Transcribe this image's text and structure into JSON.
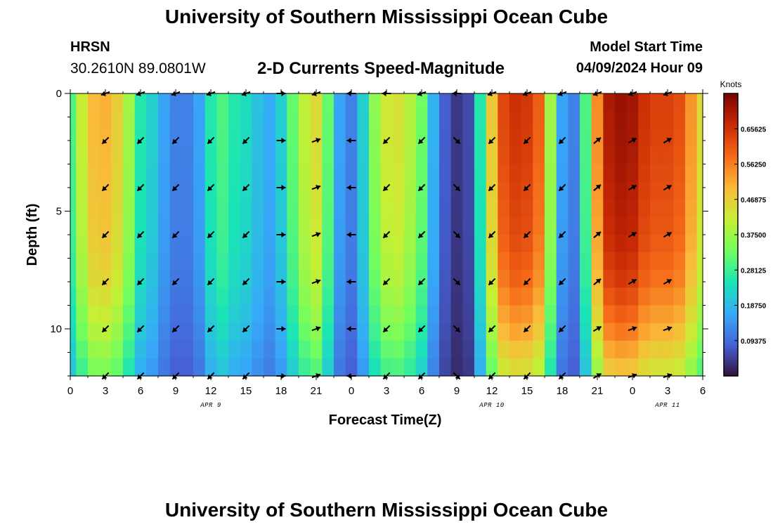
{
  "header": {
    "title": "University of Southern Mississippi Ocean Cube",
    "station": "HRSN",
    "coordinates": "30.2610N  89.0801W",
    "subtitle": "2-D Currents Speed-Magnitude",
    "model_start_label": "Model Start Time",
    "model_start_value": "04/09/2024 Hour 09"
  },
  "footer": {
    "title": "University of Southern Mississippi Ocean Cube"
  },
  "chart_data": {
    "type": "heatmap",
    "title": "2-D Currents Speed-Magnitude",
    "xlabel": "Forecast Time(Z)",
    "ylabel": "Depth (ft)",
    "x_tick_labels": [
      "0",
      "3",
      "6",
      "9",
      "12",
      "15",
      "18",
      "21",
      "0",
      "3",
      "6",
      "9",
      "12",
      "15",
      "18",
      "21",
      "0",
      "3",
      "6"
    ],
    "x_range_hours": [
      0,
      54
    ],
    "date_labels": [
      {
        "text": "APR 9",
        "hour": 12
      },
      {
        "text": "APR 10",
        "hour": 36
      },
      {
        "text": "APR 11",
        "hour": 51
      }
    ],
    "y_ticks": [
      0,
      5,
      10
    ],
    "y_range_ft": [
      0,
      12
    ],
    "y_inverted": true,
    "colorbar": {
      "title": "Knots",
      "range": [
        0,
        0.75
      ],
      "ticks": [
        "0.09375",
        "0.18750",
        "0.28125",
        "0.37500",
        "0.46875",
        "0.56250",
        "0.65625"
      ],
      "colors": [
        "#30123b",
        "#4662d7",
        "#36aaf9",
        "#1ae4b6",
        "#72fe5e",
        "#c7ef34",
        "#faba39",
        "#f66b19",
        "#ca2a04",
        "#7a0403"
      ]
    },
    "speed_profile": {
      "hours": [
        0,
        1,
        2,
        3,
        4,
        5,
        6,
        7,
        8,
        9,
        10,
        11,
        12,
        13,
        14,
        15,
        16,
        17,
        18,
        19,
        20,
        21,
        22,
        23,
        24,
        25,
        26,
        27,
        28,
        29,
        30,
        31,
        32,
        33,
        34,
        35,
        36,
        37,
        38,
        39,
        40,
        41,
        42,
        43,
        44,
        45,
        46,
        47,
        48,
        49,
        50,
        51,
        52,
        53,
        54
      ],
      "surface_knots": [
        0.3,
        0.42,
        0.5,
        0.51,
        0.47,
        0.38,
        0.26,
        0.22,
        0.16,
        0.12,
        0.12,
        0.16,
        0.26,
        0.3,
        0.26,
        0.24,
        0.2,
        0.17,
        0.22,
        0.32,
        0.41,
        0.45,
        0.32,
        0.16,
        0.12,
        0.22,
        0.36,
        0.43,
        0.44,
        0.4,
        0.33,
        0.18,
        0.08,
        0.04,
        0.06,
        0.26,
        0.48,
        0.63,
        0.66,
        0.65,
        0.6,
        0.38,
        0.16,
        0.12,
        0.3,
        0.55,
        0.7,
        0.72,
        0.71,
        0.66,
        0.64,
        0.64,
        0.62,
        0.54,
        0.45
      ],
      "depth_ft": [
        0,
        2,
        4,
        6,
        8,
        10,
        12
      ],
      "depth_factor": [
        1.0,
        0.99,
        0.97,
        0.95,
        0.9,
        0.8,
        0.66
      ]
    },
    "vectors": {
      "hours": [
        3,
        6,
        9,
        12,
        15,
        18,
        21,
        24,
        27,
        30,
        33,
        36,
        39,
        42,
        45,
        48,
        51
      ],
      "depths_ft": [
        0,
        2,
        4,
        6,
        8,
        10,
        12
      ],
      "direction_deg": [
        225,
        225,
        225,
        225,
        225,
        90,
        70,
        270,
        225,
        225,
        135,
        225,
        225,
        225,
        50,
        60,
        60
      ],
      "deep_direction_deg": [
        225,
        225,
        225,
        225,
        225,
        90,
        70,
        270,
        225,
        225,
        135,
        225,
        225,
        225,
        60,
        70,
        70
      ],
      "top_row_direction_deg": [
        250,
        250,
        250,
        250,
        250,
        90,
        250,
        270,
        270,
        250,
        270,
        250,
        250,
        250,
        250,
        250,
        250
      ]
    }
  }
}
